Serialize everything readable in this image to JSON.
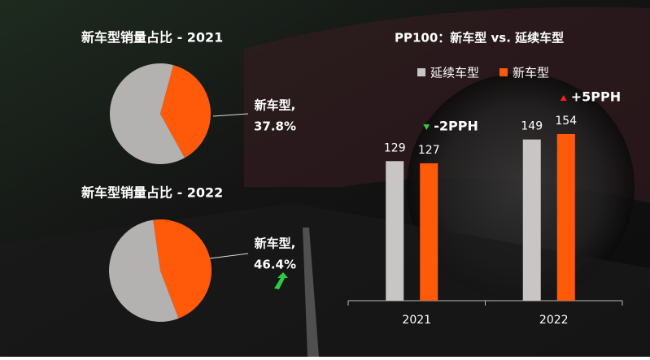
{
  "chart_data": [
    {
      "type": "pie",
      "title": "新车型销量占比 - 2021",
      "categories": [
        "新车型,",
        null
      ],
      "values": [
        37.8,
        62.2
      ],
      "value_labels": [
        "37.8%",
        null
      ],
      "colors": [
        "#ff5a0a",
        "#b4b2b0"
      ]
    },
    {
      "type": "pie",
      "title": "新车型销量占比 - 2022",
      "categories": [
        "新车型,",
        null
      ],
      "values": [
        46.4,
        53.6
      ],
      "value_labels": [
        "46.4%",
        null
      ],
      "colors": [
        "#ff5a0a",
        "#b4b2b0"
      ]
    },
    {
      "type": "bar",
      "title": "PP100：新车型 vs. 延续车型",
      "categories": [
        "2021",
        "2022"
      ],
      "series": [
        {
          "name": "延续车型",
          "color": "#c8c6c4",
          "values": [
            129,
            149
          ]
        },
        {
          "name": "新车型",
          "color": "#ff5a0a",
          "values": [
            127,
            154
          ]
        }
      ],
      "annotations": [
        "-2PPH",
        "+5PPH"
      ],
      "legend": "top"
    }
  ]
}
